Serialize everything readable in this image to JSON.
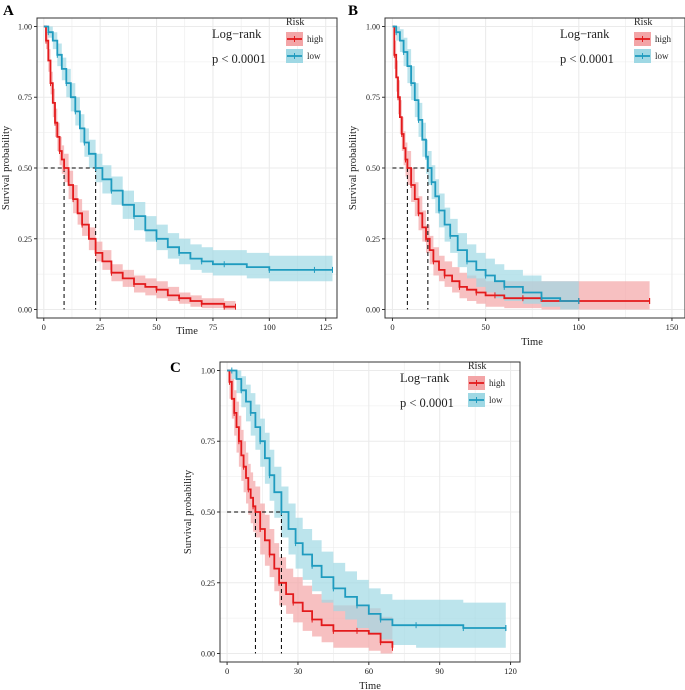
{
  "colors": {
    "high": "#e31a1c",
    "low": "#1f9bbf",
    "high_band": "#f3a5a7",
    "low_band": "#9fd8e4",
    "grid": "#ebebeb",
    "frame": "#333333"
  },
  "chart_data": [
    {
      "panel": "A",
      "type": "line",
      "step": true,
      "title": "",
      "xlabel": "Time",
      "ylabel": "Survival probability",
      "xlim": [
        -3,
        130
      ],
      "ylim": [
        -0.03,
        1.03
      ],
      "xticks": [
        0,
        25,
        50,
        75,
        100,
        125
      ],
      "yticks": [
        0,
        0.25,
        0.5,
        0.75,
        1.0
      ],
      "ytick_labels": [
        "0.00",
        "0.25",
        "0.50",
        "0.75",
        "1.00"
      ],
      "legend_title": "Risk",
      "legend_position": "top-right",
      "annotation": [
        "Log−rank",
        "p < 0.0001"
      ],
      "median_survival": [
        {
          "name": "high",
          "x": 9
        },
        {
          "name": "low",
          "x": 23
        }
      ],
      "series": [
        {
          "name": "high",
          "x": [
            0,
            1,
            2,
            3,
            4,
            5,
            6,
            7,
            8,
            9,
            11,
            13,
            15,
            17,
            20,
            23,
            26,
            30,
            35,
            40,
            45,
            50,
            55,
            60,
            65,
            70,
            75,
            80,
            85
          ],
          "y": [
            1.0,
            0.95,
            0.88,
            0.8,
            0.73,
            0.66,
            0.61,
            0.56,
            0.53,
            0.5,
            0.44,
            0.39,
            0.34,
            0.3,
            0.25,
            0.2,
            0.17,
            0.13,
            0.11,
            0.09,
            0.08,
            0.07,
            0.05,
            0.04,
            0.03,
            0.02,
            0.02,
            0.01,
            0.01
          ],
          "lower": [
            1.0,
            0.92,
            0.84,
            0.76,
            0.68,
            0.61,
            0.56,
            0.51,
            0.48,
            0.45,
            0.39,
            0.34,
            0.3,
            0.26,
            0.21,
            0.17,
            0.14,
            0.1,
            0.08,
            0.06,
            0.05,
            0.04,
            0.03,
            0.02,
            0.01,
            0.005,
            0.005,
            0.0,
            0.0
          ],
          "upper": [
            1.0,
            0.98,
            0.92,
            0.84,
            0.78,
            0.71,
            0.66,
            0.61,
            0.58,
            0.55,
            0.49,
            0.44,
            0.39,
            0.35,
            0.29,
            0.24,
            0.21,
            0.16,
            0.14,
            0.12,
            0.11,
            0.1,
            0.08,
            0.06,
            0.05,
            0.04,
            0.04,
            0.03,
            0.03
          ]
        },
        {
          "name": "low",
          "x": [
            0,
            2,
            4,
            6,
            8,
            10,
            12,
            14,
            16,
            18,
            20,
            23,
            26,
            30,
            35,
            40,
            45,
            50,
            55,
            60,
            65,
            70,
            75,
            80,
            90,
            100,
            110,
            120,
            128
          ],
          "y": [
            1.0,
            0.98,
            0.95,
            0.9,
            0.85,
            0.8,
            0.75,
            0.7,
            0.64,
            0.59,
            0.55,
            0.5,
            0.46,
            0.42,
            0.37,
            0.33,
            0.28,
            0.25,
            0.22,
            0.2,
            0.18,
            0.17,
            0.16,
            0.16,
            0.15,
            0.14,
            0.14,
            0.14,
            0.14
          ],
          "lower": [
            1.0,
            0.96,
            0.92,
            0.86,
            0.81,
            0.75,
            0.7,
            0.65,
            0.59,
            0.54,
            0.5,
            0.45,
            0.41,
            0.37,
            0.32,
            0.28,
            0.24,
            0.21,
            0.18,
            0.16,
            0.14,
            0.13,
            0.12,
            0.12,
            0.11,
            0.1,
            0.1,
            0.1,
            0.1
          ],
          "upper": [
            1.0,
            1.0,
            0.98,
            0.94,
            0.89,
            0.85,
            0.8,
            0.75,
            0.69,
            0.64,
            0.6,
            0.55,
            0.51,
            0.47,
            0.42,
            0.38,
            0.33,
            0.3,
            0.27,
            0.25,
            0.23,
            0.22,
            0.21,
            0.21,
            0.2,
            0.19,
            0.19,
            0.19,
            0.19
          ]
        }
      ]
    },
    {
      "panel": "B",
      "type": "line",
      "step": true,
      "title": "",
      "xlabel": "Time",
      "ylabel": "Survival probability",
      "xlim": [
        -4,
        157
      ],
      "ylim": [
        -0.03,
        1.03
      ],
      "xticks": [
        0,
        50,
        100,
        150
      ],
      "yticks": [
        0,
        0.25,
        0.5,
        0.75,
        1.0
      ],
      "ytick_labels": [
        "0.00",
        "0.25",
        "0.50",
        "0.75",
        "1.00"
      ],
      "legend_title": "Risk",
      "legend_position": "top-right",
      "annotation": [
        "Log−rank",
        "p < 0.0001"
      ],
      "median_survival": [
        {
          "name": "high",
          "x": 8
        },
        {
          "name": "low",
          "x": 19
        }
      ],
      "series": [
        {
          "name": "high",
          "x": [
            0,
            1,
            2,
            3,
            4,
            5,
            6,
            7,
            8,
            10,
            12,
            14,
            16,
            18,
            20,
            22,
            25,
            28,
            32,
            36,
            40,
            45,
            50,
            55,
            60,
            70,
            80,
            100,
            120,
            138
          ],
          "y": [
            1.0,
            0.9,
            0.82,
            0.75,
            0.68,
            0.62,
            0.57,
            0.53,
            0.5,
            0.44,
            0.39,
            0.34,
            0.29,
            0.25,
            0.21,
            0.17,
            0.14,
            0.12,
            0.1,
            0.08,
            0.07,
            0.06,
            0.05,
            0.05,
            0.04,
            0.04,
            0.03,
            0.03,
            0.03,
            0.03
          ],
          "lower": [
            1.0,
            0.85,
            0.77,
            0.69,
            0.62,
            0.56,
            0.51,
            0.47,
            0.44,
            0.38,
            0.33,
            0.28,
            0.24,
            0.2,
            0.16,
            0.12,
            0.1,
            0.08,
            0.06,
            0.04,
            0.03,
            0.02,
            0.01,
            0.01,
            0.005,
            0.005,
            0.0,
            0.0,
            0.0,
            0.0
          ],
          "upper": [
            1.0,
            0.95,
            0.88,
            0.81,
            0.74,
            0.68,
            0.63,
            0.59,
            0.56,
            0.5,
            0.45,
            0.4,
            0.35,
            0.3,
            0.26,
            0.22,
            0.19,
            0.17,
            0.15,
            0.13,
            0.12,
            0.11,
            0.1,
            0.1,
            0.1,
            0.1,
            0.1,
            0.1,
            0.1,
            0.1
          ]
        },
        {
          "name": "low",
          "x": [
            0,
            2,
            4,
            6,
            8,
            10,
            12,
            14,
            16,
            18,
            19,
            21,
            23,
            25,
            28,
            31,
            35,
            40,
            45,
            50,
            55,
            60,
            70,
            80,
            90,
            100
          ],
          "y": [
            1.0,
            0.98,
            0.95,
            0.91,
            0.86,
            0.8,
            0.74,
            0.67,
            0.6,
            0.54,
            0.5,
            0.45,
            0.4,
            0.35,
            0.3,
            0.26,
            0.21,
            0.17,
            0.14,
            0.12,
            0.1,
            0.08,
            0.06,
            0.04,
            0.03,
            0.03
          ],
          "lower": [
            1.0,
            0.95,
            0.91,
            0.86,
            0.8,
            0.74,
            0.68,
            0.61,
            0.54,
            0.48,
            0.44,
            0.39,
            0.34,
            0.29,
            0.24,
            0.2,
            0.15,
            0.11,
            0.08,
            0.06,
            0.04,
            0.03,
            0.02,
            0.01,
            0.0,
            0.0
          ],
          "upper": [
            1.0,
            1.0,
            0.99,
            0.96,
            0.92,
            0.86,
            0.8,
            0.73,
            0.66,
            0.6,
            0.56,
            0.51,
            0.46,
            0.41,
            0.36,
            0.32,
            0.27,
            0.23,
            0.2,
            0.18,
            0.16,
            0.14,
            0.12,
            0.1,
            0.1,
            0.1
          ]
        }
      ]
    },
    {
      "panel": "C",
      "type": "line",
      "step": true,
      "title": "",
      "xlabel": "Time",
      "ylabel": "Survival probability",
      "xlim": [
        -3,
        124
      ],
      "ylim": [
        -0.03,
        1.03
      ],
      "xticks": [
        0,
        30,
        60,
        90,
        120
      ],
      "yticks": [
        0,
        0.25,
        0.5,
        0.75,
        1.0
      ],
      "ytick_labels": [
        "0.00",
        "0.25",
        "0.50",
        "0.75",
        "1.00"
      ],
      "legend_title": "Risk",
      "legend_position": "top-right",
      "annotation": [
        "Log−rank",
        "p < 0.0001"
      ],
      "median_survival": [
        {
          "name": "high",
          "x": 12
        },
        {
          "name": "low",
          "x": 23
        }
      ],
      "series": [
        {
          "name": "high",
          "x": [
            0,
            1,
            2,
            3,
            4,
            5,
            6,
            7,
            8,
            9,
            10,
            11,
            12,
            14,
            16,
            18,
            20,
            22,
            25,
            28,
            32,
            36,
            40,
            45,
            50,
            55,
            60,
            65,
            70
          ],
          "y": [
            1.0,
            0.96,
            0.9,
            0.85,
            0.8,
            0.75,
            0.7,
            0.66,
            0.62,
            0.58,
            0.55,
            0.52,
            0.5,
            0.44,
            0.4,
            0.35,
            0.3,
            0.25,
            0.21,
            0.18,
            0.15,
            0.12,
            0.1,
            0.08,
            0.08,
            0.08,
            0.07,
            0.04,
            0.02
          ],
          "lower": [
            1.0,
            0.9,
            0.83,
            0.77,
            0.71,
            0.66,
            0.61,
            0.57,
            0.53,
            0.49,
            0.46,
            0.43,
            0.41,
            0.35,
            0.31,
            0.27,
            0.22,
            0.17,
            0.14,
            0.11,
            0.08,
            0.06,
            0.04,
            0.02,
            0.02,
            0.02,
            0.01,
            0.0,
            0.0
          ],
          "upper": [
            1.0,
            1.0,
            0.97,
            0.93,
            0.89,
            0.84,
            0.79,
            0.75,
            0.71,
            0.67,
            0.64,
            0.61,
            0.59,
            0.53,
            0.49,
            0.44,
            0.39,
            0.34,
            0.3,
            0.27,
            0.24,
            0.21,
            0.19,
            0.17,
            0.17,
            0.17,
            0.16,
            0.13,
            0.11
          ]
        },
        {
          "name": "low",
          "x": [
            0,
            2,
            4,
            6,
            8,
            10,
            12,
            14,
            16,
            18,
            20,
            23,
            26,
            29,
            32,
            36,
            40,
            45,
            50,
            55,
            60,
            65,
            70,
            80,
            90,
            100,
            110,
            118
          ],
          "y": [
            1.0,
            1.0,
            0.97,
            0.93,
            0.89,
            0.85,
            0.8,
            0.75,
            0.69,
            0.63,
            0.57,
            0.5,
            0.44,
            0.39,
            0.35,
            0.31,
            0.27,
            0.23,
            0.2,
            0.17,
            0.14,
            0.12,
            0.1,
            0.1,
            0.1,
            0.09,
            0.09,
            0.09
          ],
          "lower": [
            1.0,
            0.97,
            0.92,
            0.87,
            0.82,
            0.77,
            0.72,
            0.66,
            0.6,
            0.54,
            0.48,
            0.41,
            0.35,
            0.3,
            0.26,
            0.22,
            0.18,
            0.15,
            0.12,
            0.09,
            0.07,
            0.05,
            0.03,
            0.02,
            0.02,
            0.02,
            0.02,
            0.02
          ],
          "upper": [
            1.0,
            1.0,
            1.0,
            0.98,
            0.95,
            0.92,
            0.88,
            0.83,
            0.78,
            0.72,
            0.66,
            0.59,
            0.53,
            0.48,
            0.44,
            0.4,
            0.36,
            0.32,
            0.29,
            0.26,
            0.23,
            0.21,
            0.19,
            0.19,
            0.19,
            0.18,
            0.18,
            0.18
          ]
        }
      ]
    }
  ]
}
